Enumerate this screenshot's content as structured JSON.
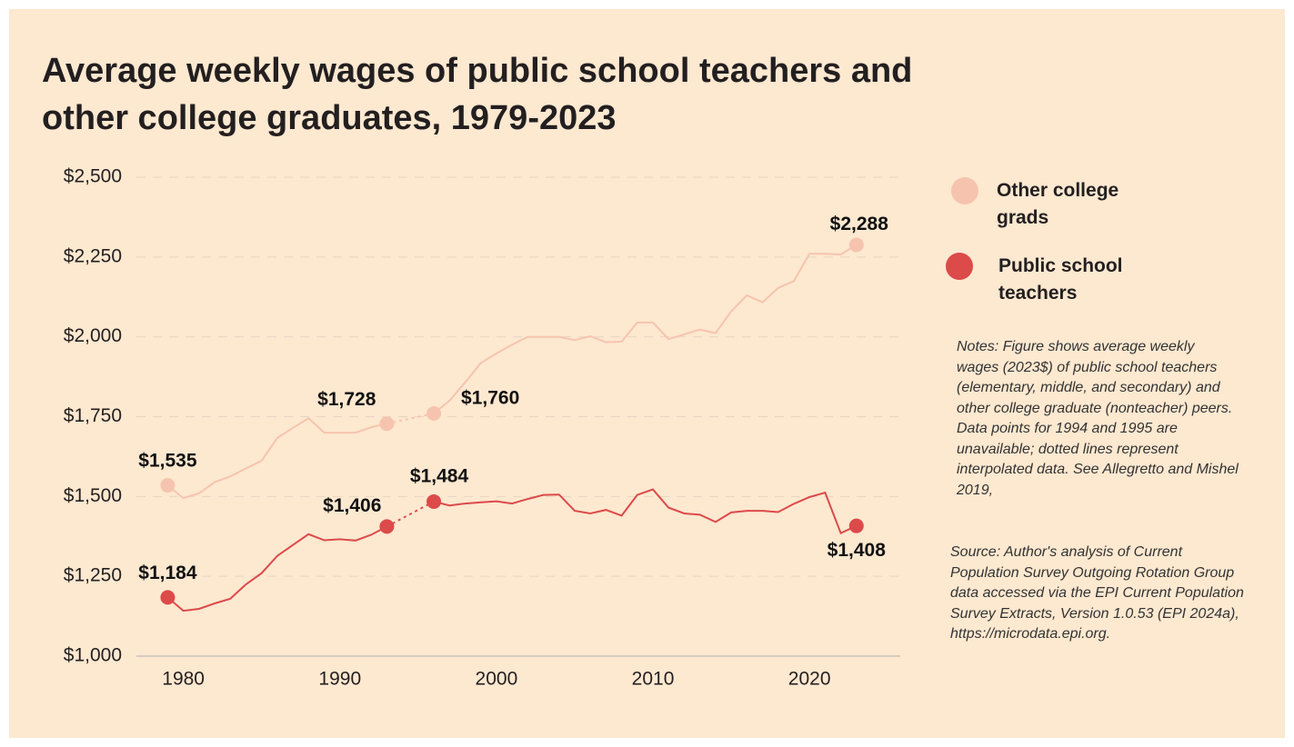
{
  "chart_data": {
    "type": "line",
    "title": "Average weekly wages of public school teachers and other college graduates, 1979-2023",
    "x": [
      1979,
      1980,
      1981,
      1982,
      1983,
      1984,
      1985,
      1986,
      1987,
      1988,
      1989,
      1990,
      1991,
      1992,
      1993,
      1994,
      1995,
      1996,
      1997,
      1998,
      1999,
      2000,
      2001,
      2002,
      2003,
      2004,
      2005,
      2006,
      2007,
      2008,
      2009,
      2010,
      2011,
      2012,
      2013,
      2014,
      2015,
      2016,
      2017,
      2018,
      2019,
      2020,
      2021,
      2022,
      2023
    ],
    "series": [
      {
        "name": "Other college grads",
        "color": "#f6c4ae",
        "values": [
          1535,
          1495,
          1510,
          1545,
          1563,
          1588,
          1612,
          1683,
          1715,
          1745,
          1700,
          1700,
          1700,
          1717,
          1728,
          null,
          null,
          1760,
          1800,
          1857,
          1918,
          1948,
          1975,
          2000,
          2000,
          2000,
          1990,
          2002,
          1983,
          1985,
          2045,
          2045,
          1993,
          2008,
          2023,
          2012,
          2080,
          2130,
          2108,
          2153,
          2175,
          2260,
          2260,
          2258,
          2288
        ],
        "value_labels": [
          "$1,535",
          null,
          null,
          null,
          null,
          null,
          null,
          null,
          null,
          null,
          null,
          null,
          null,
          null,
          "$1,728",
          null,
          null,
          "$1,760",
          null,
          null,
          null,
          null,
          null,
          null,
          null,
          null,
          null,
          null,
          null,
          null,
          null,
          null,
          null,
          null,
          null,
          null,
          null,
          null,
          null,
          null,
          null,
          null,
          null,
          null,
          "$2,288"
        ]
      },
      {
        "name": "Public school teachers",
        "color": "#dc4a4a",
        "values": [
          1184,
          1142,
          1148,
          1165,
          1180,
          1225,
          1260,
          1314,
          1348,
          1382,
          1363,
          1366,
          1362,
          1380,
          1406,
          null,
          null,
          1484,
          1472,
          1478,
          1482,
          1485,
          1478,
          1492,
          1505,
          1506,
          1455,
          1447,
          1458,
          1440,
          1505,
          1522,
          1465,
          1447,
          1443,
          1420,
          1450,
          1455,
          1455,
          1451,
          1477,
          1498,
          1512,
          1385,
          1408
        ],
        "value_labels": [
          "$1,184",
          null,
          null,
          null,
          null,
          null,
          null,
          null,
          null,
          null,
          null,
          null,
          null,
          null,
          "$1,406",
          null,
          null,
          "$1,484",
          null,
          null,
          null,
          null,
          null,
          null,
          null,
          null,
          null,
          null,
          null,
          null,
          null,
          null,
          null,
          null,
          null,
          null,
          null,
          null,
          null,
          null,
          null,
          null,
          null,
          null,
          "$1,408"
        ]
      }
    ],
    "xlim": [
      1977,
      2025.8
    ],
    "xticks": [
      1980,
      1990,
      2000,
      2010,
      2020
    ],
    "ylim": [
      1000,
      2500
    ],
    "yticks": [
      {
        "value": 1000,
        "label": "$1,000"
      },
      {
        "value": 1250,
        "label": "$1,250"
      },
      {
        "value": 1500,
        "label": "$1,500"
      },
      {
        "value": 1750,
        "label": "$1,750"
      },
      {
        "value": 2000,
        "label": "$2,000"
      },
      {
        "value": 2250,
        "label": "$2,250"
      },
      {
        "value": 2500,
        "label": "$2,500"
      }
    ],
    "grid": true,
    "notes": "Notes: Figure shows average weekly wages (2023$) of public school teachers (elementary, middle, and secondary) and other college graduate (nonteacher) peers. Data points for 1994 and 1995 are unavailable; dotted lines represent interpolated data. See Allegretto and Mishel 2019,",
    "source": "Source: Author's analysis of Current Population Survey Outgoing Rotation Group data accessed via the EPI Current Population Survey Extracts, Version 1.0.53 (EPI 2024a), https://microdata.epi.org."
  }
}
